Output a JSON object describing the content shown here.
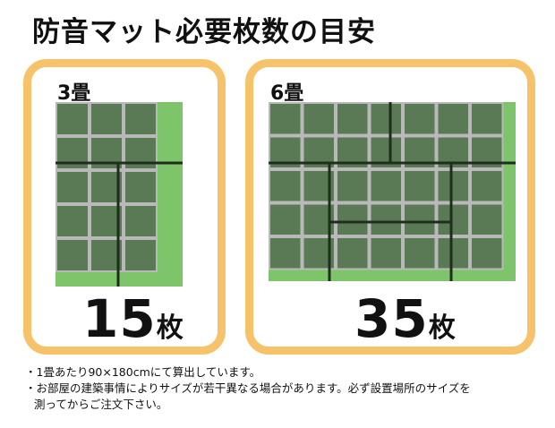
{
  "title": "防音マット必要枚数の目安",
  "colors": {
    "panel_border": "#f6c36a",
    "tatami": "#7dc46a",
    "mat": "#5a7a55",
    "mat_grid": "#b9b9b9",
    "seam": "#1f2e1c"
  },
  "panels": [
    {
      "label": "3畳",
      "count": "15",
      "unit": "枚",
      "mat_cols": 3,
      "mat_rows": 5
    },
    {
      "label": "6畳",
      "count": "35",
      "unit": "枚",
      "mat_cols": 7,
      "mat_rows": 5
    }
  ],
  "notes": [
    "・1畳あたり90×180cmにて算出しています。",
    "・お部屋の建築事情によりサイズが若干異なる場合があります。必ず設置場所のサイズを",
    "測ってからご注文下さい。"
  ]
}
